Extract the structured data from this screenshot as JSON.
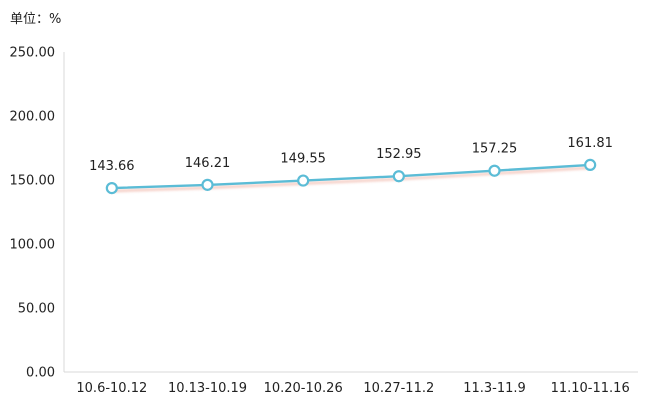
{
  "unit_label": "单位：%",
  "chart_data": {
    "type": "line",
    "categories": [
      "10.6-10.12",
      "10.13-10.19",
      "10.20-10.26",
      "10.27-11.2",
      "11.3-11.9",
      "11.10-11.16"
    ],
    "series": [
      {
        "values": [
          143.66,
          146.21,
          149.55,
          152.95,
          157.25,
          161.81
        ]
      }
    ],
    "data_labels": [
      "143.66",
      "146.21",
      "149.55",
      "152.95",
      "157.25",
      "161.81"
    ],
    "y_ticks": [
      "0.00",
      "50.00",
      "100.00",
      "150.00",
      "200.00",
      "250.00"
    ],
    "ylim": [
      0,
      250
    ],
    "grid": false,
    "legend": "none",
    "line_color": "#5bbcd6",
    "marker_fill": "#ffffff",
    "marker_stroke": "#5bbcd6",
    "shadow_color": "#f0b4a6",
    "axis_color": "#d9d9d9"
  }
}
